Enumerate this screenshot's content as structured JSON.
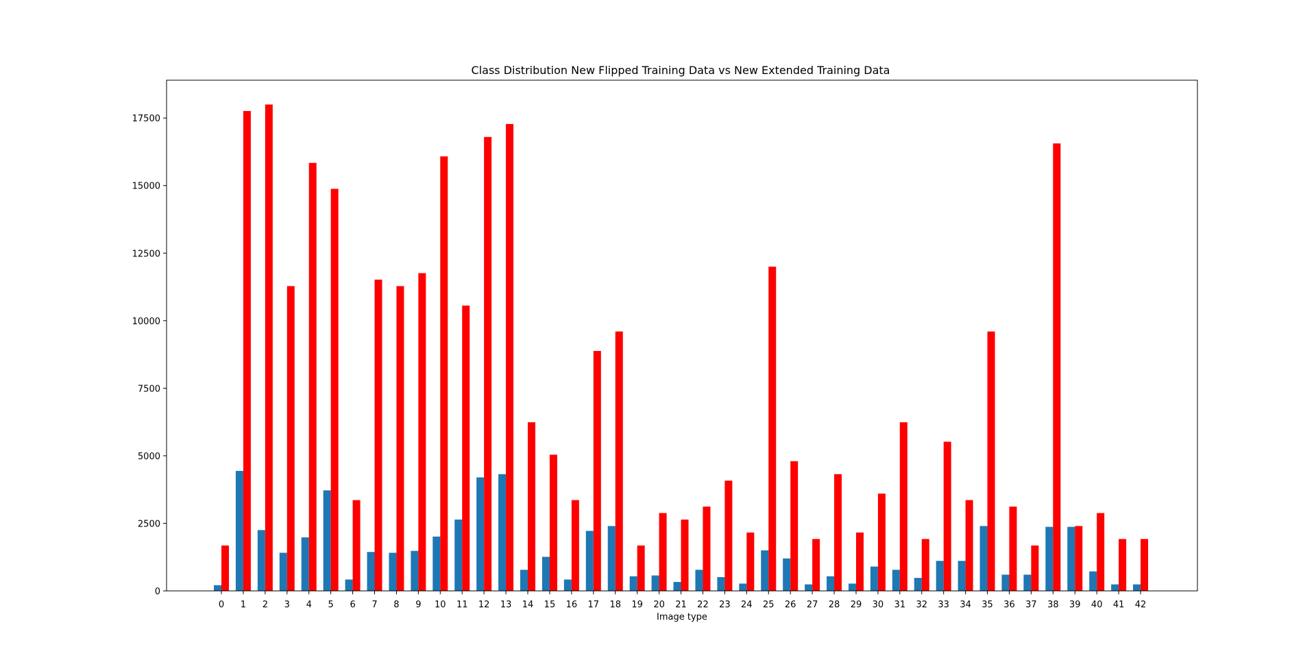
{
  "chart_data": {
    "type": "bar",
    "title": "Class Distribution  New Flipped Training Data vs New Extended Training Data",
    "xlabel": "Image type",
    "ylabel": "",
    "ylim": [
      0,
      18900
    ],
    "yticks": [
      0,
      2500,
      5000,
      7500,
      10000,
      12500,
      15000,
      17500
    ],
    "grid": false,
    "categories": [
      "0",
      "1",
      "2",
      "3",
      "4",
      "5",
      "6",
      "7",
      "8",
      "9",
      "10",
      "11",
      "12",
      "13",
      "14",
      "15",
      "16",
      "17",
      "18",
      "19",
      "20",
      "21",
      "22",
      "23",
      "24",
      "25",
      "26",
      "27",
      "28",
      "29",
      "30",
      "31",
      "32",
      "33",
      "34",
      "35",
      "36",
      "37",
      "38",
      "39",
      "40",
      "41",
      "42"
    ],
    "series": [
      {
        "color": "#1f77b4",
        "values": [
          210,
          4440,
          2250,
          1410,
          1980,
          3720,
          420,
          1440,
          1410,
          1480,
          2010,
          2640,
          4200,
          4320,
          780,
          1260,
          420,
          2220,
          2400,
          540,
          570,
          330,
          780,
          510,
          270,
          1500,
          1200,
          240,
          540,
          270,
          900,
          780,
          480,
          1110,
          1110,
          2400,
          600,
          600,
          2370,
          2370,
          720,
          240,
          240
        ]
      },
      {
        "color": "#ff0000",
        "values": [
          1680,
          17760,
          18000,
          11280,
          15840,
          14880,
          3360,
          11520,
          11280,
          11760,
          16080,
          10560,
          16800,
          17280,
          6240,
          5040,
          3360,
          8880,
          9600,
          1680,
          2880,
          2640,
          3120,
          4080,
          2160,
          12000,
          4800,
          1920,
          4320,
          2160,
          3600,
          6240,
          1920,
          5520,
          3360,
          9600,
          3120,
          1680,
          16560,
          2400,
          2880,
          1920,
          1920
        ]
      }
    ]
  }
}
